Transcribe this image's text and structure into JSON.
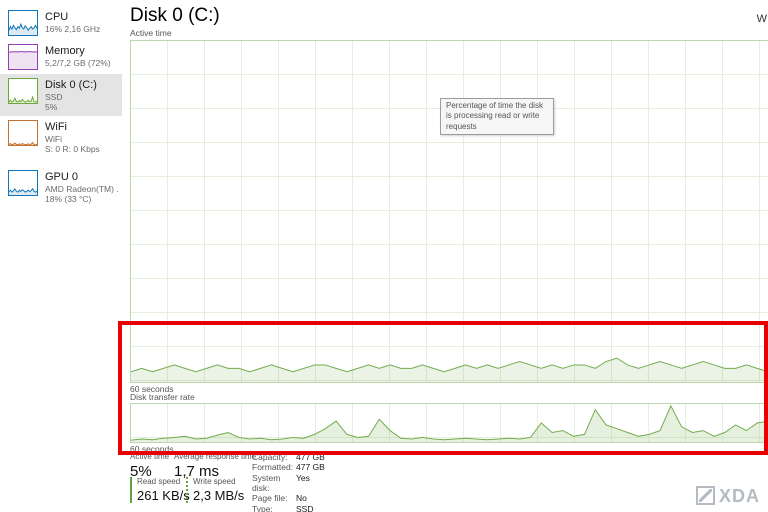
{
  "sidebar": {
    "items": [
      {
        "id": "cpu",
        "title": "CPU",
        "lines": [
          "16% 2,16 GHz"
        ],
        "color": "#1375b6",
        "fill": "rgba(19,117,182,0.15)",
        "points": [
          20,
          35,
          25,
          40,
          30,
          22,
          35,
          28,
          45,
          30,
          25,
          38,
          30,
          20,
          28,
          35,
          25,
          30,
          40,
          28
        ]
      },
      {
        "id": "memory",
        "title": "Memory",
        "lines": [
          "5,2/7,2 GB (72%)"
        ],
        "color": "#9141ac",
        "fill": "rgba(145,65,172,0.15)",
        "points": [
          70,
          71,
          72,
          71,
          72,
          72,
          71,
          72,
          73,
          72,
          72,
          71,
          72,
          72,
          73,
          72,
          71,
          72,
          71,
          72
        ]
      },
      {
        "id": "disk",
        "title": "Disk 0 (C:)",
        "lines": [
          "SSD",
          "5%"
        ],
        "selected": true,
        "color": "#6fa83c",
        "fill": "rgba(111,168,60,0.18)",
        "points": [
          5,
          12,
          4,
          8,
          20,
          6,
          4,
          10,
          5,
          15,
          8,
          4,
          6,
          12,
          5,
          8,
          25,
          6,
          4,
          8
        ]
      },
      {
        "id": "wifi",
        "title": "WiFi",
        "lines": [
          "WiFi",
          "S: 0 R: 0 Kbps"
        ],
        "color": "#c3732f",
        "fill": "rgba(195,115,47,0.18)",
        "points": [
          2,
          6,
          1,
          3,
          8,
          2,
          1,
          4,
          2,
          6,
          3,
          1,
          2,
          5,
          2,
          3,
          10,
          2,
          1,
          3
        ]
      },
      {
        "id": "gpu",
        "title": "GPU 0",
        "lines": [
          "AMD Radeon(TM) ...",
          "18% (33 °C)"
        ],
        "color": "#1375b6",
        "fill": "rgba(19,117,182,0.15)",
        "points": [
          14,
          20,
          12,
          18,
          25,
          15,
          12,
          20,
          15,
          22,
          18,
          12,
          15,
          20,
          14,
          18,
          26,
          15,
          12,
          16
        ]
      }
    ]
  },
  "main": {
    "title": "Disk 0 (C:)",
    "top_right": "W",
    "active_time_caption": "Active time",
    "transfer_caption": "Disk transfer rate",
    "sixty_seconds": "60 seconds",
    "tooltip": "Percentage of time the disk is processing read or write requests"
  },
  "charts": {
    "active_time": {
      "series": [
        {
          "stroke": "#74ab4e",
          "fill": "rgba(116,171,78,0.14)",
          "points": [
            3,
            4,
            3,
            4,
            5,
            4,
            3,
            4,
            5,
            4,
            4,
            3,
            4,
            5,
            4,
            3,
            4,
            5,
            5,
            4,
            3,
            4,
            5,
            4,
            5,
            4,
            4,
            5,
            4,
            3,
            4,
            5,
            4,
            5,
            4,
            5,
            6,
            5,
            4,
            5,
            4,
            5,
            5,
            4,
            6,
            7,
            5,
            4,
            5,
            6,
            5,
            4,
            5,
            6,
            5,
            4,
            4,
            5,
            4,
            3
          ]
        }
      ]
    },
    "transfer_rate": {
      "series": [
        {
          "stroke": "#74ab4e",
          "fill": "rgba(116,171,78,0.18)",
          "points": [
            5,
            8,
            6,
            10,
            12,
            15,
            8,
            10,
            18,
            25,
            12,
            8,
            10,
            6,
            8,
            12,
            10,
            20,
            35,
            55,
            20,
            12,
            15,
            60,
            30,
            10,
            8,
            12,
            8,
            6,
            8,
            10,
            8,
            6,
            8,
            10,
            8,
            12,
            50,
            25,
            30,
            15,
            20,
            85,
            45,
            35,
            25,
            15,
            20,
            30,
            95,
            40,
            25,
            30,
            15,
            25,
            45,
            30,
            50,
            55
          ]
        }
      ]
    }
  },
  "stats": {
    "active_time": {
      "label": "Active time",
      "value": "5%"
    },
    "response": {
      "label": "Average response time",
      "value": "1,7 ms"
    },
    "read": {
      "label": "Read speed",
      "value": "261 KB/s"
    },
    "write": {
      "label": "Write speed",
      "value": "2,3 MB/s"
    },
    "details": [
      {
        "label": "Capacity:",
        "value": "477 GB"
      },
      {
        "label": "Formatted:",
        "value": "477 GB"
      },
      {
        "label": "System disk:",
        "value": "Yes"
      },
      {
        "label": "Page file:",
        "value": "No"
      },
      {
        "label": "Type:",
        "value": "SSD"
      }
    ]
  },
  "annotation": {
    "color": "#e80000"
  },
  "watermark": {
    "text": "XDA"
  }
}
